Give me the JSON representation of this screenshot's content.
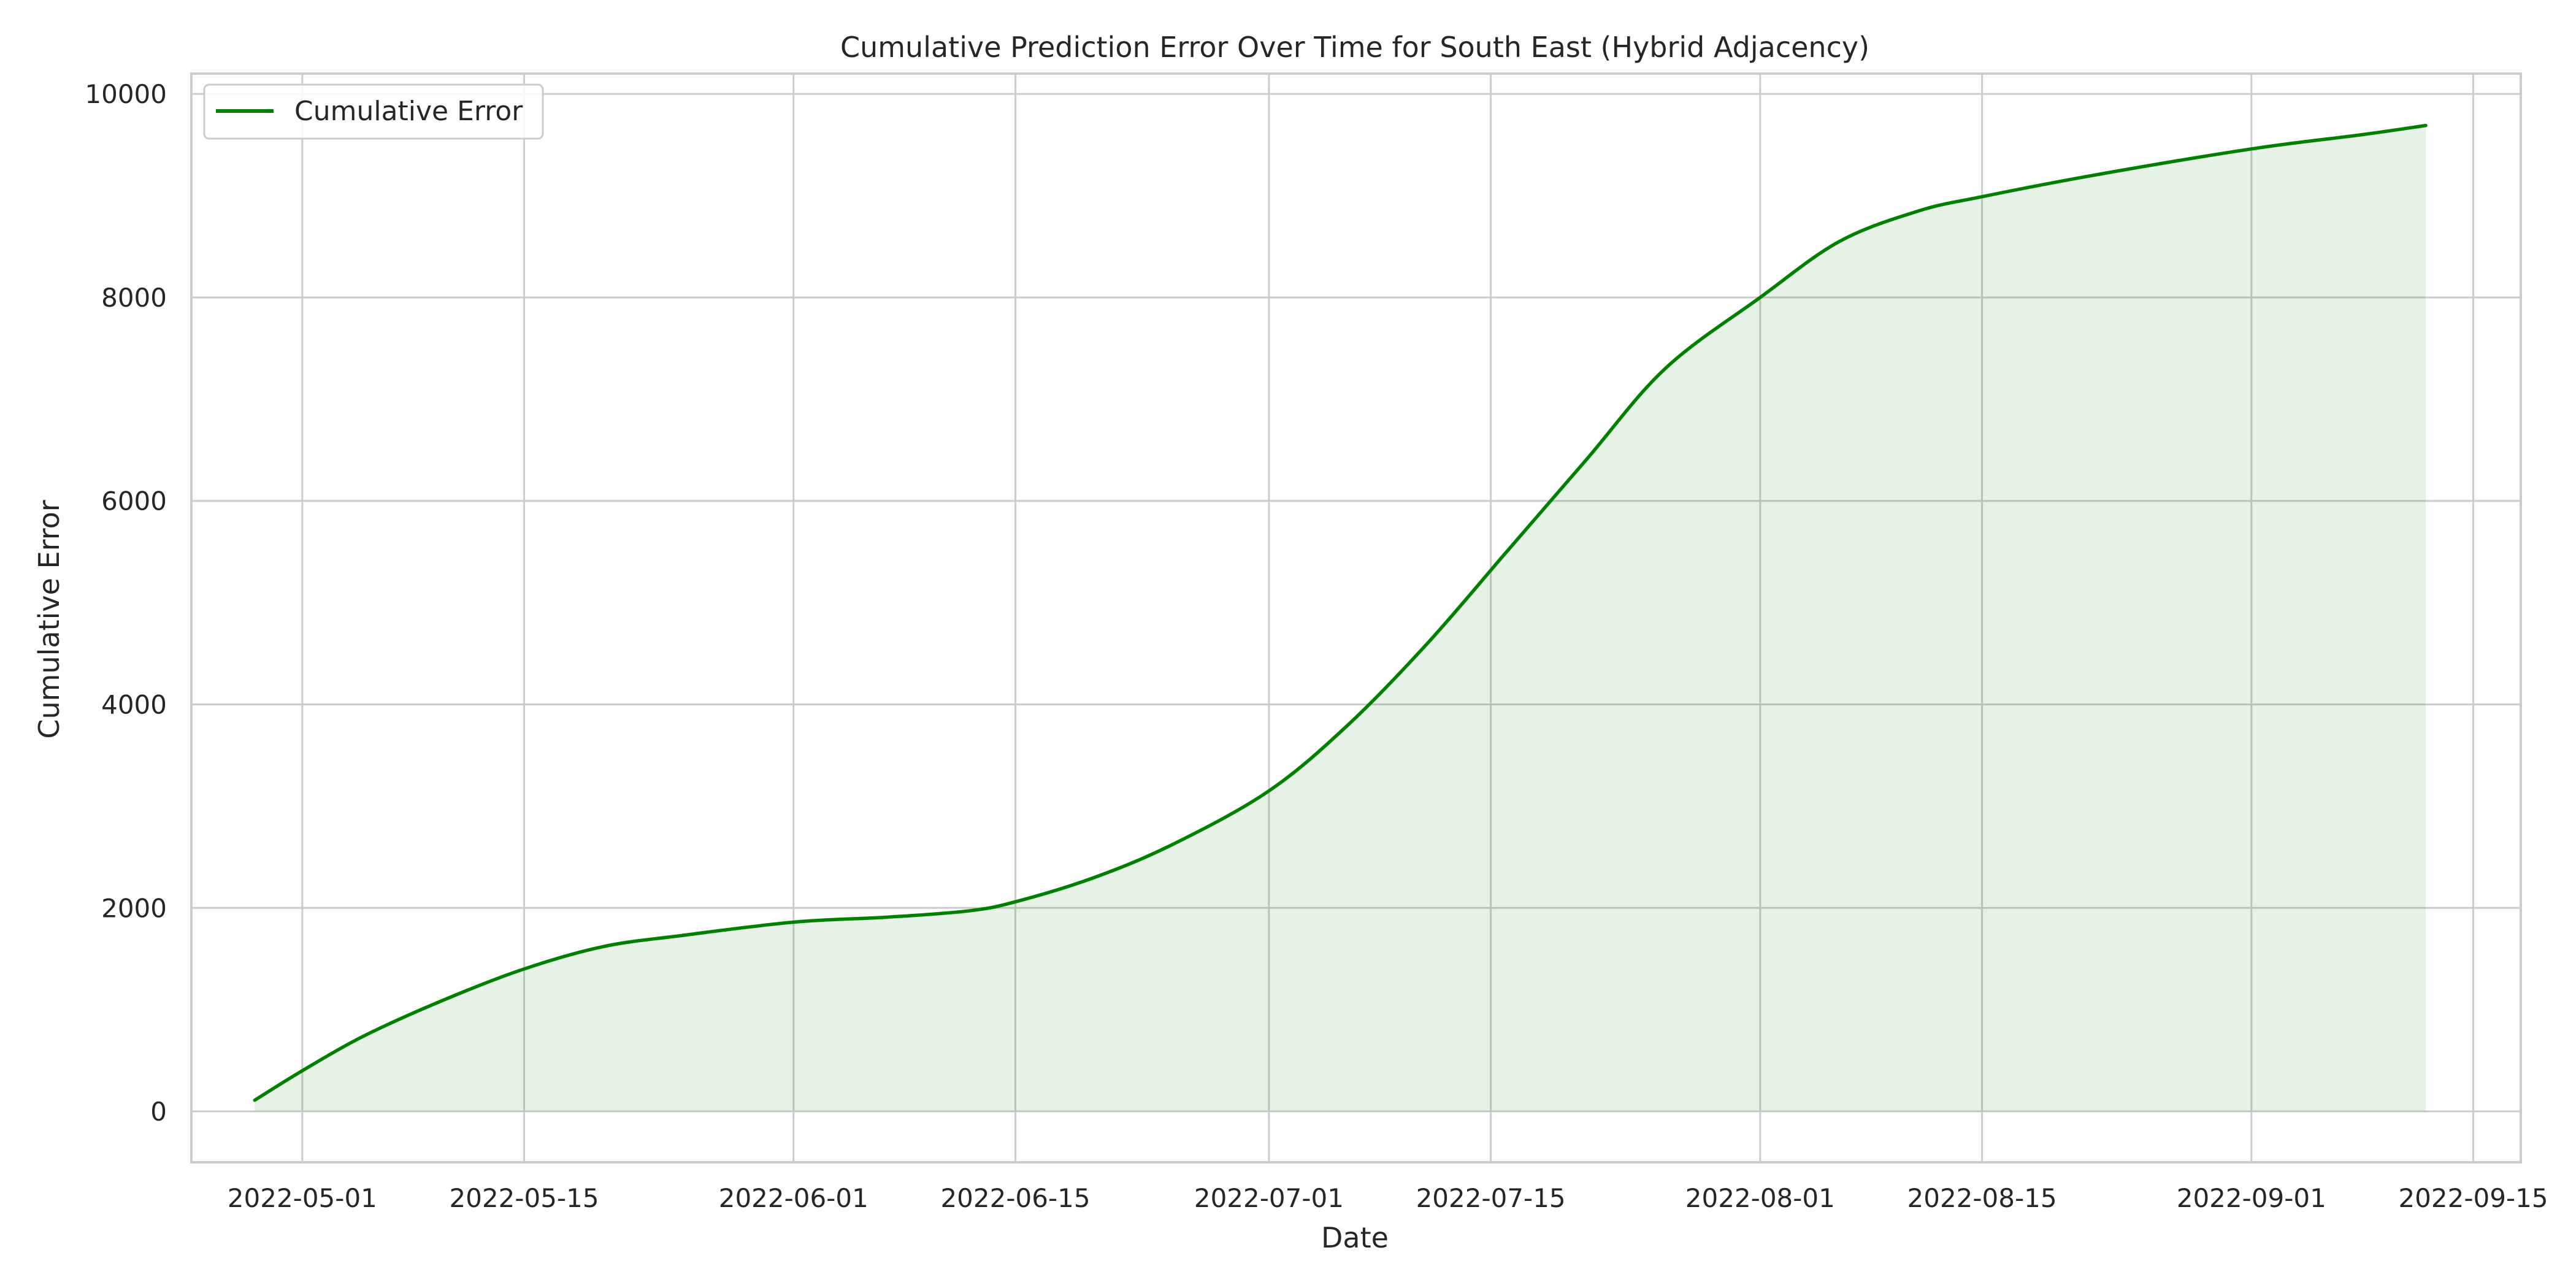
{
  "chart_data": {
    "type": "area",
    "title": "Cumulative Prediction Error Over Time for South East (Hybrid Adjacency)",
    "xlabel": "Date",
    "ylabel": "Cumulative Error",
    "xlim": [
      "2022-04-24",
      "2022-09-18"
    ],
    "ylim": [
      -500,
      10200
    ],
    "x_ticks": [
      "2022-05-01",
      "2022-05-15",
      "2022-06-01",
      "2022-06-15",
      "2022-07-01",
      "2022-07-15",
      "2022-08-01",
      "2022-08-15",
      "2022-09-01",
      "2022-09-15"
    ],
    "y_ticks": [
      0,
      2000,
      4000,
      6000,
      8000,
      10000
    ],
    "grid": true,
    "legend": {
      "position": "top-left",
      "entries": [
        "Cumulative Error"
      ]
    },
    "line_color": "#008000",
    "fill_color": "#008000",
    "fill_opacity": 0.1,
    "series": [
      {
        "name": "Cumulative Error",
        "x": [
          "2022-04-28",
          "2022-05-01",
          "2022-05-05",
          "2022-05-10",
          "2022-05-15",
          "2022-05-20",
          "2022-05-25",
          "2022-06-01",
          "2022-06-07",
          "2022-06-12",
          "2022-06-15",
          "2022-06-20",
          "2022-06-25",
          "2022-07-01",
          "2022-07-06",
          "2022-07-11",
          "2022-07-16",
          "2022-07-21",
          "2022-07-26",
          "2022-08-01",
          "2022-08-06",
          "2022-08-11",
          "2022-08-15",
          "2022-08-22",
          "2022-09-01",
          "2022-09-08",
          "2022-09-12"
        ],
        "values": [
          110,
          400,
          750,
          1100,
          1400,
          1620,
          1730,
          1860,
          1910,
          1970,
          2060,
          2300,
          2630,
          3150,
          3800,
          4600,
          5500,
          6400,
          7300,
          8000,
          8550,
          8850,
          8990,
          9200,
          9460,
          9600,
          9690
        ]
      }
    ]
  }
}
